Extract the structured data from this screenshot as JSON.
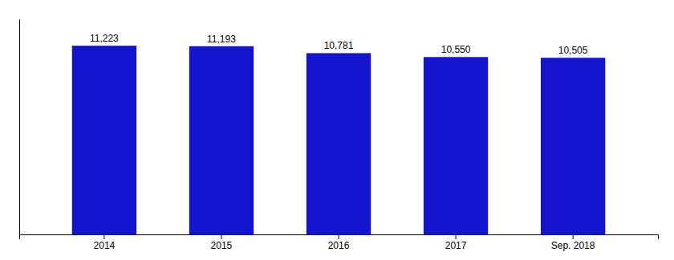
{
  "chart_data": {
    "type": "bar",
    "categories": [
      "2014",
      "2015",
      "2016",
      "2017",
      "Sep. 2018"
    ],
    "values": [
      11223,
      11193,
      10781,
      10550,
      10505
    ],
    "value_labels": [
      "11,223",
      "11,193",
      "10,781",
      "10,550",
      "10,505"
    ],
    "color": "#1414CC",
    "ylim": [
      0,
      12800
    ],
    "tick_labels": "x"
  }
}
